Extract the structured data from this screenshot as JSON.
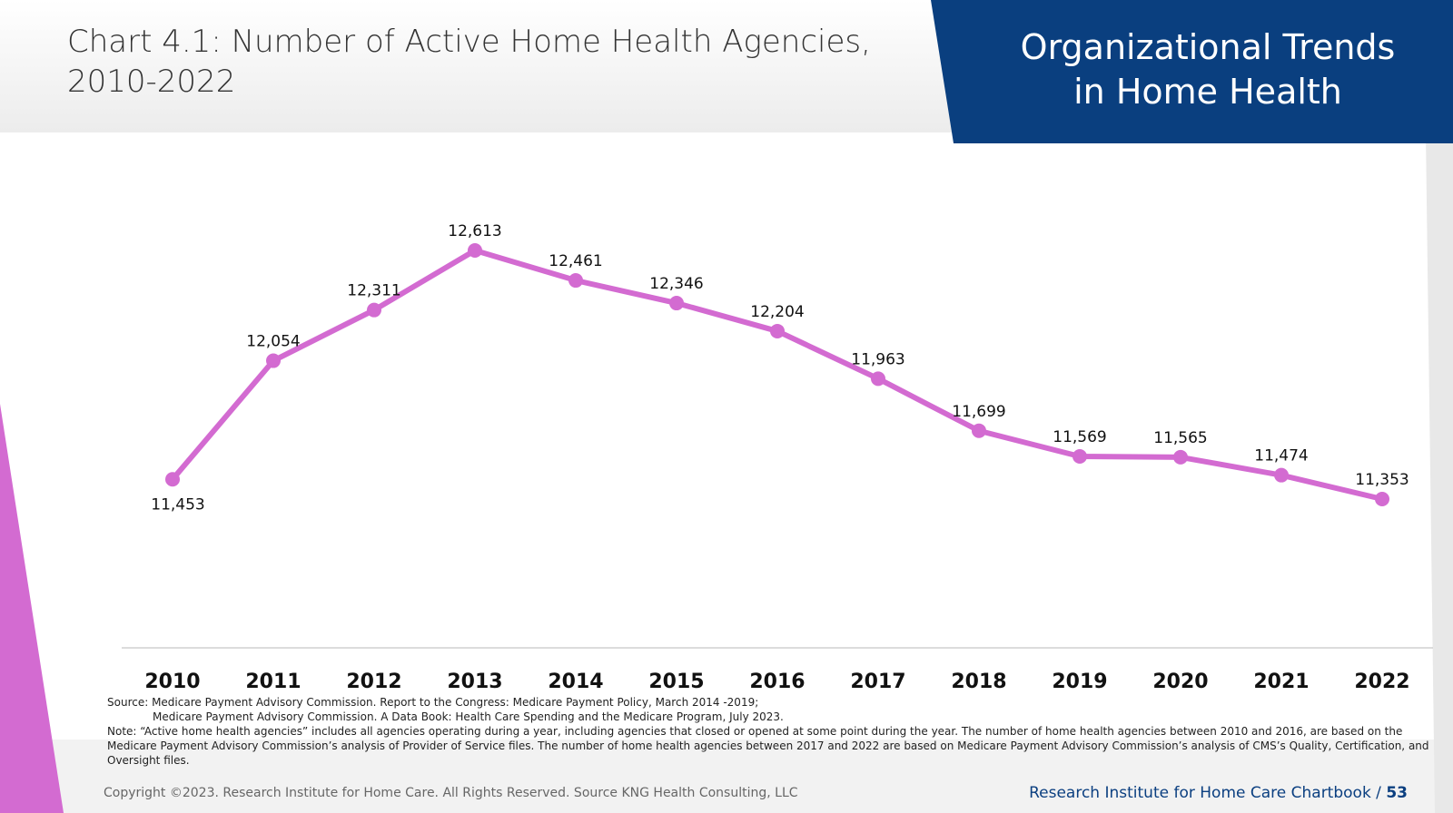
{
  "chart_data": {
    "type": "line",
    "title": "Chart 4.1: Number of Active Home Health Agencies, 2010-2022",
    "categories": [
      "2010",
      "2011",
      "2012",
      "2013",
      "2014",
      "2015",
      "2016",
      "2017",
      "2018",
      "2019",
      "2020",
      "2021",
      "2022"
    ],
    "values": [
      11453,
      12054,
      12311,
      12613,
      12461,
      12346,
      12204,
      11963,
      11699,
      11569,
      11565,
      11474,
      11353
    ],
    "value_labels": [
      "11,453",
      "12,054",
      "12,311",
      "12,613",
      "12,461",
      "12,346",
      "12,204",
      "11,963",
      "11,699",
      "11,569",
      "11,565",
      "11,474",
      "11,353"
    ],
    "color": "#d36bd1"
  },
  "header": {
    "section_title": [
      "Organizational Trends",
      "in Home Health"
    ]
  },
  "source": [
    "Source: Medicare Payment Advisory Commission. Report to the Congress: Medicare Payment Policy, March 2014 -2019;",
    "Medicare Payment Advisory Commission. A Data Book: Health Care Spending and the Medicare Program, July 2023."
  ],
  "note": "Note: “Active home health agencies” includes all agencies operating during a year, including agencies that closed or opened at some point during the year. The number of home health agencies between 2010 and 2016, are based on the Medicare Payment Advisory Commission’s analysis of Provider of Service files. The number of home health agencies between 2017 and 2022 are based on Medicare Payment Advisory Commission’s analysis of CMS’s Quality, Certification, and Oversight files.",
  "footer": {
    "copyright": "Copyright ©2023. Research Institute for Home Care. All Rights Reserved. Source KNG Health Consulting, LLC",
    "publication": "Research Institute for Home Care Chartbook /",
    "page": "53"
  }
}
